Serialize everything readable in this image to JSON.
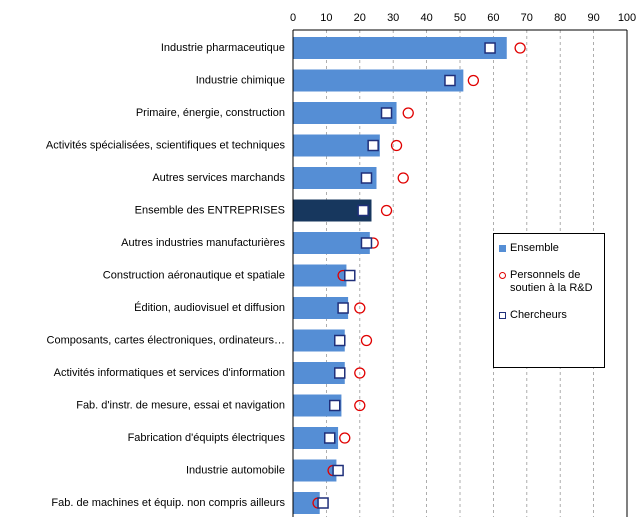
{
  "chart_data": {
    "type": "bar",
    "orientation": "horizontal",
    "categories": [
      "Industrie pharmaceutique",
      "Industrie chimique",
      "Primaire, énergie, construction",
      "Activités spécialisées, scientifiques et techniques",
      "Autres services marchands",
      "Ensemble des ENTREPRISES",
      "Autres industries manufacturières",
      "Construction aéronautique et spatiale",
      "Édition, audiovisuel et diffusion",
      "Composants, cartes électroniques, ordinateurs…",
      "Activités informatiques et services d'information",
      "Fab. d'instr. de mesure, essai et navigation",
      "Fabrication d'équipts électriques",
      "Industrie automobile",
      "Fab. de machines et équip. non compris ailleurs"
    ],
    "series": [
      {
        "name": "Ensemble",
        "marker": "bar",
        "color": "#558ed5",
        "colors": [
          "#558ed5",
          "#558ed5",
          "#558ed5",
          "#558ed5",
          "#558ed5",
          "#17375e",
          "#558ed5",
          "#558ed5",
          "#558ed5",
          "#558ed5",
          "#558ed5",
          "#558ed5",
          "#558ed5",
          "#558ed5",
          "#558ed5"
        ],
        "values": [
          64,
          51,
          31,
          26,
          25,
          23.5,
          23,
          16,
          16.5,
          15.5,
          15.5,
          14.5,
          13.5,
          13,
          8
        ]
      },
      {
        "name": "Personnels de soutien à la R&D",
        "marker": "circle",
        "color": "#e00000",
        "values": [
          68,
          54,
          34.5,
          31,
          33,
          28,
          24,
          15,
          20,
          22,
          20,
          20,
          15.5,
          12,
          7.5
        ]
      },
      {
        "name": "Chercheurs",
        "marker": "square",
        "color": "#1f2f7a",
        "values": [
          59,
          47,
          28,
          24,
          22,
          21,
          22,
          17,
          15,
          14,
          14,
          12.5,
          11,
          13.5,
          9
        ]
      }
    ],
    "xlim": [
      0,
      100
    ],
    "xticks": [
      0,
      10,
      20,
      30,
      40,
      50,
      60,
      70,
      80,
      90,
      100
    ],
    "grid": true
  }
}
